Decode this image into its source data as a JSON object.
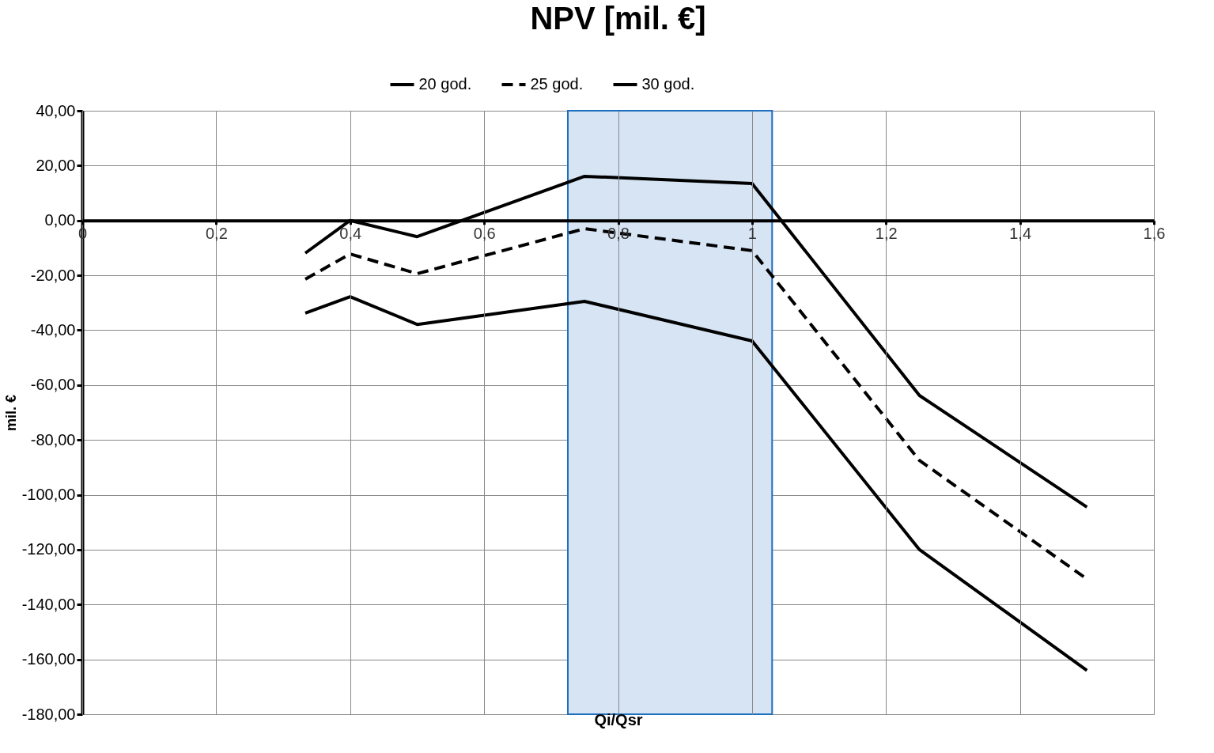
{
  "chart_data": {
    "type": "line",
    "title": "NPV [mil. €]",
    "xlabel": "Qi/Qsr",
    "ylabel": "mil. €",
    "x": [
      0.333,
      0.4,
      0.5,
      0.75,
      1.0,
      1.25,
      1.5
    ],
    "series": [
      {
        "name": "20 god.",
        "color": "#000000",
        "line_style": "solid",
        "values": [
          -33.8,
          -27.8,
          -37.9,
          -29.5,
          -43.9,
          -120.0,
          -164.0
        ]
      },
      {
        "name": "25 god.",
        "color": "#000000",
        "line_style": "dashed",
        "values": [
          -21.4,
          -12.2,
          -19.4,
          -3.0,
          -11.0,
          -87.5,
          -130.7
        ]
      },
      {
        "name": "30 god.",
        "color": "#000000",
        "line_style": "solid",
        "values": [
          -11.9,
          0.0,
          -5.9,
          16.1,
          13.5,
          -63.8,
          -104.5
        ]
      }
    ],
    "xlim": [
      0,
      1.6
    ],
    "xticks": [
      0,
      {
        "value": 0.2,
        "label": "0,2"
      },
      {
        "value": 0.4,
        "label": "0,4"
      },
      {
        "value": 0.6,
        "label": "0,6"
      },
      {
        "value": 0.8,
        "label": "0,8"
      },
      1,
      {
        "value": 1.2,
        "label": "1,2"
      },
      {
        "value": 1.4,
        "label": "1,4"
      },
      {
        "value": 1.6,
        "label": "1,6"
      }
    ],
    "ylim": [
      -180,
      40
    ],
    "yticks": [
      {
        "value": 40,
        "label": "40,00"
      },
      {
        "value": 20,
        "label": "20,00"
      },
      {
        "value": 0,
        "label": "0,00"
      },
      {
        "value": -20,
        "label": "-20,00"
      },
      {
        "value": -40,
        "label": "-40,00"
      },
      {
        "value": -60,
        "label": "-60,00"
      },
      {
        "value": -80,
        "label": "-80,00"
      },
      {
        "value": -100,
        "label": "-100,00"
      },
      {
        "value": -120,
        "label": "-120,00"
      },
      {
        "value": -140,
        "label": "-140,00"
      },
      {
        "value": -160,
        "label": "-160,00"
      },
      {
        "value": -180,
        "label": "-180,00"
      }
    ],
    "bands": [
      {
        "axis": "x",
        "from": 0.725,
        "to": 1.03,
        "color": "#d6e4f4"
      }
    ],
    "grid": true,
    "legend": "top",
    "marker": "none"
  }
}
